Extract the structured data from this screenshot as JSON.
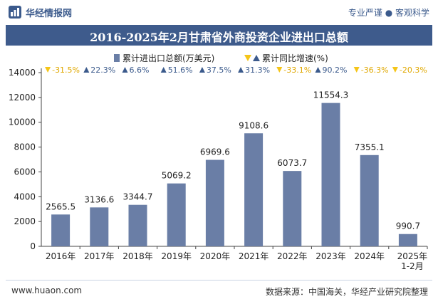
{
  "header": {
    "brand": "华经情报网",
    "slogan": "专业严谨 ● 客观科学"
  },
  "footer": {
    "website": "www.huaon.com",
    "source": "数据来源：中国海关，华经产业研究院整理"
  },
  "colors": {
    "bar": "#6a7ea6",
    "up": "#3b5a8c",
    "down": "#f5c518",
    "title_bg": "#3e5b8c"
  },
  "chart_data": {
    "type": "bar",
    "title": "2016-2025年2月甘肃省外商投资企业进出口总额",
    "categories": [
      "2016年",
      "2017年",
      "2018年",
      "2019年",
      "2020年",
      "2021年",
      "2022年",
      "2023年",
      "2024年",
      "2025年\n1-2月"
    ],
    "ylim": [
      0,
      14000
    ],
    "yticks": [
      0,
      2000,
      4000,
      6000,
      8000,
      10000,
      12000,
      14000
    ],
    "legend": [
      "累计进出口总额(万美元)",
      "累计同比增速(%)"
    ],
    "legend_position": "top",
    "series": [
      {
        "name": "累计进出口总额(万美元)",
        "values": [
          2565.5,
          3136.6,
          3344.7,
          5069.2,
          6969.6,
          9108.6,
          6073.7,
          11554.3,
          7355.1,
          990.7
        ],
        "labels": [
          "2565.5",
          "3136.6",
          "3344.7",
          "5069.2",
          "6969.6",
          "9108.6",
          "6073.7",
          "11554.3",
          "7355.1",
          "990.7"
        ]
      },
      {
        "name": "累计同比增速(%)",
        "values": [
          -31.5,
          22.3,
          6.6,
          51.6,
          37.5,
          31.3,
          -33.1,
          90.2,
          -36.3,
          -20.3
        ],
        "labels": [
          "-31.5%",
          "22.3%",
          "6.6%",
          "51.6%",
          "37.5%",
          "31.3%",
          "-33.1%",
          "90.2%",
          "-36.3%",
          "-20.3%"
        ]
      }
    ]
  }
}
